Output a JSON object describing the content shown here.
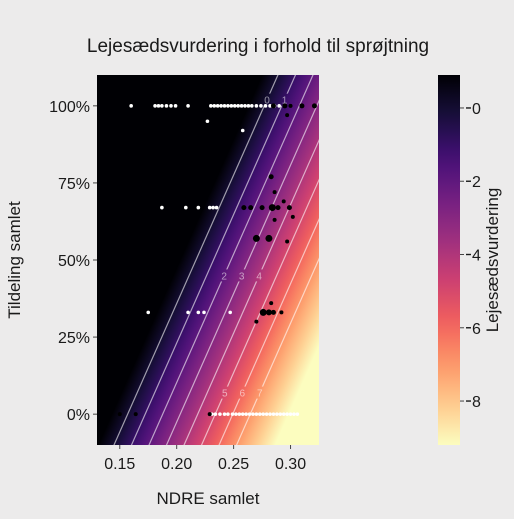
{
  "chart_data": {
    "type": "heatmap",
    "title": "Lejesædsvurdering i forhold til sprøjtning",
    "xlabel": "NDRE samlet",
    "ylabel": "Tildeling samlet",
    "colorbar_label": "Lejesædsvurdering",
    "xlim": [
      0.13,
      0.325
    ],
    "ylim": [
      -0.1,
      1.1
    ],
    "x_ticks": [
      0.15,
      0.2,
      0.25,
      0.3
    ],
    "x_tick_labels": [
      "0.15",
      "0.20",
      "0.25",
      "0.30"
    ],
    "y_ticks": [
      0,
      0.25,
      0.5,
      0.75,
      1.0
    ],
    "y_tick_labels": [
      "0%",
      "25%",
      "50%",
      "75%",
      "100%"
    ],
    "colorbar_range": [
      -9.2,
      0.9
    ],
    "colorbar_ticks": [
      0,
      -2,
      -4,
      -6,
      -8
    ],
    "colorbar_tick_labels": [
      "0",
      "2",
      "4",
      "6",
      "8"
    ],
    "contour_levels": [
      -7,
      -6,
      -5,
      -4,
      -3,
      -2,
      -1,
      0
    ],
    "contour_labels": [
      "7",
      "6",
      "5",
      "4",
      "3",
      "2",
      "1",
      "0"
    ],
    "surface_model": {
      "intercept": 10.2,
      "ndre_coef": -65.0,
      "tildeling_coef": 7.8
    },
    "colormap": [
      "#fcfdbf",
      "#feca8d",
      "#fd9668",
      "#f1605d",
      "#cd4071",
      "#9e2f7f",
      "#721f81",
      "#440f76",
      "#180f3d",
      "#000004"
    ],
    "points_white": [
      {
        "x": 0.16,
        "y": 1.0
      },
      {
        "x": 0.181,
        "y": 1.0
      },
      {
        "x": 0.184,
        "y": 1.0
      },
      {
        "x": 0.187,
        "y": 1.0
      },
      {
        "x": 0.191,
        "y": 1.0
      },
      {
        "x": 0.195,
        "y": 1.0
      },
      {
        "x": 0.199,
        "y": 1.0
      },
      {
        "x": 0.21,
        "y": 1.0
      },
      {
        "x": 0.23,
        "y": 1.0
      },
      {
        "x": 0.233,
        "y": 1.0
      },
      {
        "x": 0.236,
        "y": 1.0
      },
      {
        "x": 0.239,
        "y": 1.0
      },
      {
        "x": 0.242,
        "y": 1.0
      },
      {
        "x": 0.245,
        "y": 1.0
      },
      {
        "x": 0.248,
        "y": 1.0
      },
      {
        "x": 0.251,
        "y": 1.0
      },
      {
        "x": 0.254,
        "y": 1.0
      },
      {
        "x": 0.257,
        "y": 1.0
      },
      {
        "x": 0.26,
        "y": 1.0
      },
      {
        "x": 0.263,
        "y": 1.0
      },
      {
        "x": 0.266,
        "y": 1.0
      },
      {
        "x": 0.27,
        "y": 1.0
      },
      {
        "x": 0.274,
        "y": 1.0
      },
      {
        "x": 0.278,
        "y": 1.0
      },
      {
        "x": 0.282,
        "y": 1.0
      },
      {
        "x": 0.286,
        "y": 1.0
      },
      {
        "x": 0.29,
        "y": 1.0
      },
      {
        "x": 0.227,
        "y": 0.95
      },
      {
        "x": 0.258,
        "y": 0.92
      },
      {
        "x": 0.187,
        "y": 0.67
      },
      {
        "x": 0.208,
        "y": 0.67
      },
      {
        "x": 0.219,
        "y": 0.67
      },
      {
        "x": 0.229,
        "y": 0.67
      },
      {
        "x": 0.232,
        "y": 0.67
      },
      {
        "x": 0.235,
        "y": 0.67
      },
      {
        "x": 0.175,
        "y": 0.33
      },
      {
        "x": 0.21,
        "y": 0.33
      },
      {
        "x": 0.219,
        "y": 0.33
      },
      {
        "x": 0.224,
        "y": 0.33
      },
      {
        "x": 0.247,
        "y": 0.33
      },
      {
        "x": 0.231,
        "y": 0.0
      },
      {
        "x": 0.234,
        "y": 0.0
      },
      {
        "x": 0.238,
        "y": 0.0
      },
      {
        "x": 0.242,
        "y": 0.0
      },
      {
        "x": 0.245,
        "y": 0.0
      },
      {
        "x": 0.249,
        "y": 0.0
      },
      {
        "x": 0.252,
        "y": 0.0
      },
      {
        "x": 0.255,
        "y": 0.0
      },
      {
        "x": 0.258,
        "y": 0.0
      },
      {
        "x": 0.261,
        "y": 0.0
      },
      {
        "x": 0.264,
        "y": 0.0
      },
      {
        "x": 0.267,
        "y": 0.0
      },
      {
        "x": 0.27,
        "y": 0.0
      },
      {
        "x": 0.273,
        "y": 0.0
      },
      {
        "x": 0.276,
        "y": 0.0
      },
      {
        "x": 0.279,
        "y": 0.0
      },
      {
        "x": 0.282,
        "y": 0.0
      },
      {
        "x": 0.285,
        "y": 0.0
      },
      {
        "x": 0.288,
        "y": 0.0
      },
      {
        "x": 0.291,
        "y": 0.0
      },
      {
        "x": 0.294,
        "y": 0.0
      },
      {
        "x": 0.297,
        "y": 0.0
      },
      {
        "x": 0.3,
        "y": 0.0
      },
      {
        "x": 0.303,
        "y": 0.0
      },
      {
        "x": 0.306,
        "y": 0.0
      }
    ],
    "points_black": [
      {
        "x": 0.15,
        "y": 0.0,
        "r": 2
      },
      {
        "x": 0.164,
        "y": 0.0,
        "r": 2
      },
      {
        "x": 0.229,
        "y": 0.0,
        "r": 2
      },
      {
        "x": 0.259,
        "y": 0.67,
        "r": 2.5
      },
      {
        "x": 0.265,
        "y": 0.67,
        "r": 2.5
      },
      {
        "x": 0.275,
        "y": 0.67,
        "r": 2.5
      },
      {
        "x": 0.284,
        "y": 0.67,
        "r": 3.5
      },
      {
        "x": 0.289,
        "y": 0.67,
        "r": 2.5
      },
      {
        "x": 0.299,
        "y": 0.67,
        "r": 2.5
      },
      {
        "x": 0.283,
        "y": 0.77,
        "r": 2.5
      },
      {
        "x": 0.286,
        "y": 0.72,
        "r": 2
      },
      {
        "x": 0.294,
        "y": 0.69,
        "r": 2
      },
      {
        "x": 0.302,
        "y": 0.64,
        "r": 2
      },
      {
        "x": 0.286,
        "y": 0.63,
        "r": 2
      },
      {
        "x": 0.27,
        "y": 0.57,
        "r": 3.5
      },
      {
        "x": 0.281,
        "y": 0.57,
        "r": 3.5
      },
      {
        "x": 0.297,
        "y": 0.56,
        "r": 2
      },
      {
        "x": 0.276,
        "y": 0.33,
        "r": 3.5
      },
      {
        "x": 0.281,
        "y": 0.33,
        "r": 3
      },
      {
        "x": 0.285,
        "y": 0.33,
        "r": 2.5
      },
      {
        "x": 0.292,
        "y": 0.33,
        "r": 2
      },
      {
        "x": 0.27,
        "y": 0.3,
        "r": 2
      },
      {
        "x": 0.283,
        "y": 0.36,
        "r": 2
      },
      {
        "x": 0.285,
        "y": 1.0,
        "r": 2.5
      },
      {
        "x": 0.295,
        "y": 1.0,
        "r": 2.5
      },
      {
        "x": 0.3,
        "y": 1.0,
        "r": 2
      },
      {
        "x": 0.31,
        "y": 1.0,
        "r": 2.5
      },
      {
        "x": 0.321,
        "y": 1.0,
        "r": 2.5
      },
      {
        "x": 0.297,
        "y": 0.97,
        "r": 2
      }
    ]
  }
}
